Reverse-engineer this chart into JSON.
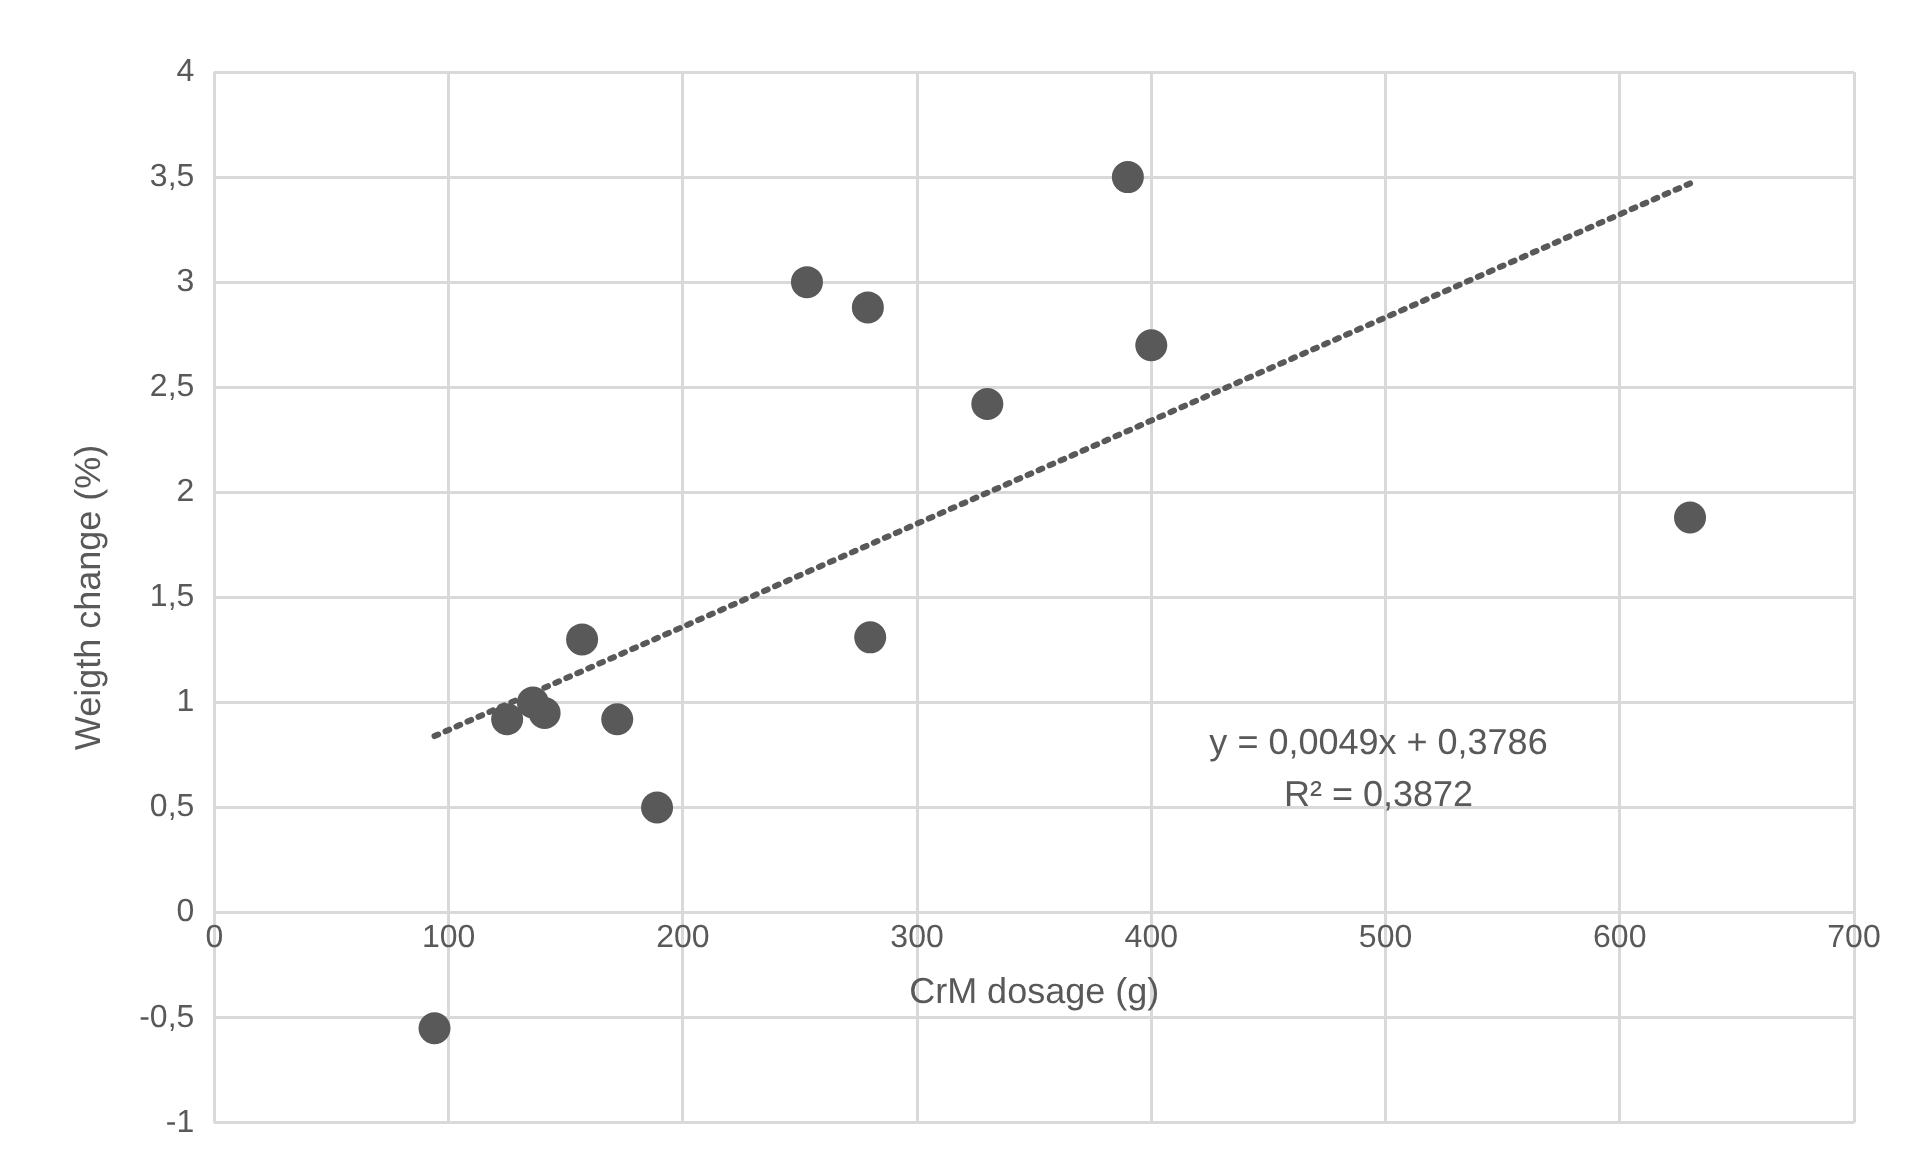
{
  "chart_data": {
    "type": "scatter",
    "xlabel": "CrM dosage (g)",
    "ylabel": "Weigth change (%)",
    "series": [
      {
        "color": "#595959",
        "x": [
          94,
          125,
          136,
          141,
          157,
          172,
          189,
          253,
          279,
          280,
          330,
          390,
          400,
          630
        ],
        "values": [
          -0.55,
          0.92,
          1.0,
          0.95,
          1.3,
          0.92,
          0.5,
          3.0,
          2.88,
          1.31,
          2.42,
          3.5,
          2.7,
          1.88
        ],
        "marker": "circle"
      },
      {
        "type": "line",
        "color": "#595959",
        "x": [
          94,
          630
        ],
        "values": [
          0.84,
          3.47
        ],
        "line_style": "dotted",
        "marker": "none"
      }
    ],
    "xlim": [
      0,
      700
    ],
    "xticks": [
      0,
      100,
      200,
      300,
      400,
      500,
      600,
      700
    ],
    "ylim": [
      -1,
      4
    ],
    "yticks": [
      {
        "value": -1,
        "label": "-1"
      },
      {
        "value": -0.5,
        "label": "-0,5"
      },
      {
        "value": 0,
        "label": "0"
      },
      {
        "value": 0.5,
        "label": "0,5"
      },
      {
        "value": 1,
        "label": "1"
      },
      {
        "value": 1.5,
        "label": "1,5"
      },
      {
        "value": 2,
        "label": "2"
      },
      {
        "value": 2.5,
        "label": "2,5"
      },
      {
        "value": 3,
        "label": "3"
      },
      {
        "value": 3.5,
        "label": "3,5"
      },
      {
        "value": 4,
        "label": "4"
      }
    ],
    "grid": true,
    "legend": false,
    "annotations": [
      "y = 0,0049x + 0,3786",
      "R² = 0,3872"
    ]
  }
}
